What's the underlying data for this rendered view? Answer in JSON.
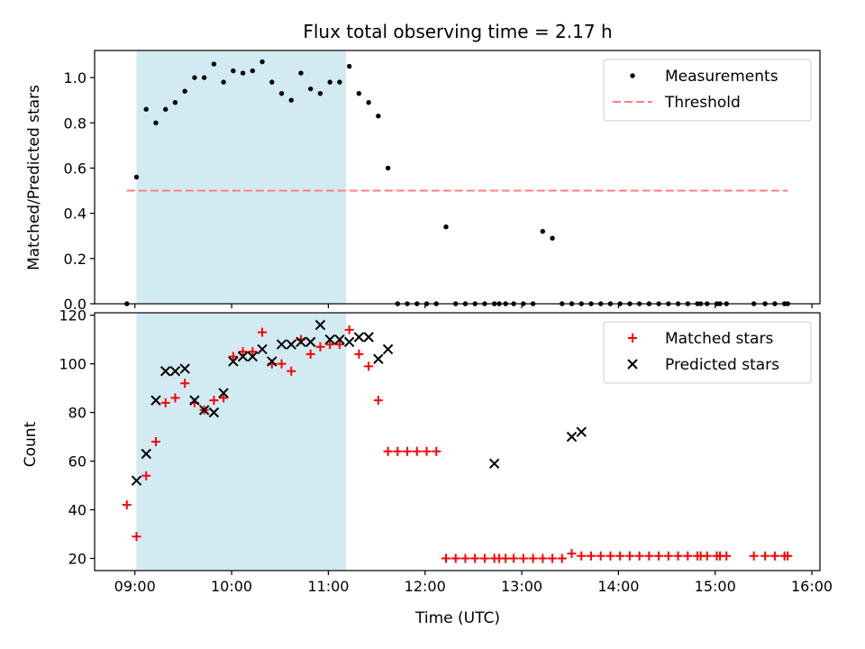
{
  "chart_data": [
    {
      "type": "scatter",
      "title": "Flux total observing time = 2.17 h",
      "xlabel": "",
      "ylabel": "Matched/Predicted stars",
      "xlim": [
        "08:35",
        "16:05"
      ],
      "ylim": [
        0,
        1.12
      ],
      "yticks": [
        "0.0",
        "0.2",
        "0.4",
        "0.6",
        "0.8",
        "1.0"
      ],
      "xticks": [
        "09:00",
        "10:00",
        "11:00",
        "12:00",
        "13:00",
        "14:00",
        "15:00",
        "16:00"
      ],
      "x_tick_labels_visible": false,
      "legend_position": "upper right",
      "highlight_span": [
        "09:01",
        "11:11"
      ],
      "highlight_color": "#add8e6",
      "series": [
        {
          "name": "Measurements",
          "marker": "dot",
          "color": "#000000",
          "x": [
            "08:55",
            "09:01",
            "09:07",
            "09:13",
            "09:19",
            "09:25",
            "09:31",
            "09:37",
            "09:43",
            "09:49",
            "09:55",
            "10:01",
            "10:07",
            "10:13",
            "10:19",
            "10:25",
            "10:31",
            "10:37",
            "10:43",
            "10:49",
            "10:55",
            "11:01",
            "11:07",
            "11:13",
            "11:19",
            "11:25",
            "11:31",
            "11:37",
            "11:43",
            "11:49",
            "11:55",
            "12:01",
            "12:07",
            "12:13",
            "12:19",
            "12:25",
            "12:31",
            "12:37",
            "12:43",
            "12:46",
            "12:50",
            "12:55",
            "13:01",
            "13:07",
            "13:13",
            "13:19",
            "13:25",
            "13:31",
            "13:37",
            "13:43",
            "13:49",
            "13:55",
            "14:01",
            "14:07",
            "14:13",
            "14:19",
            "14:25",
            "14:31",
            "14:37",
            "14:43",
            "14:49",
            "14:51",
            "14:55",
            "15:01",
            "15:03",
            "15:07",
            "15:24",
            "15:31",
            "15:37",
            "15:43",
            "15:45"
          ],
          "y": [
            0.0,
            0.56,
            0.86,
            0.8,
            0.86,
            0.89,
            0.94,
            1.0,
            1.0,
            1.06,
            0.98,
            1.03,
            1.02,
            1.03,
            1.07,
            0.98,
            0.93,
            0.9,
            1.02,
            0.95,
            0.93,
            0.98,
            0.98,
            1.05,
            0.93,
            0.89,
            0.83,
            0.6,
            0.0,
            0.0,
            0.0,
            0.0,
            0.0,
            0.34,
            0.0,
            0.0,
            0.0,
            0.0,
            0.0,
            0.0,
            0.0,
            0.0,
            0.0,
            0.0,
            0.32,
            0.29,
            0.0,
            0.0,
            0.0,
            0.0,
            0.0,
            0.0,
            0.0,
            0.0,
            0.0,
            0.0,
            0.0,
            0.0,
            0.0,
            0.0,
            0.0,
            0.0,
            0.0,
            0.0,
            0.0,
            0.0,
            0.0,
            0.0,
            0.0,
            0.0,
            0.0
          ]
        },
        {
          "name": "Threshold",
          "marker": "dashed-line",
          "color": "#ff7f7f",
          "x": [
            "08:55",
            "15:45"
          ],
          "y": [
            0.5,
            0.5
          ]
        }
      ]
    },
    {
      "type": "scatter",
      "title": "",
      "xlabel": "Time (UTC)",
      "ylabel": "Count",
      "xlim": [
        "08:35",
        "16:05"
      ],
      "ylim": [
        15,
        121
      ],
      "yticks": [
        "20",
        "40",
        "60",
        "80",
        "100",
        "120"
      ],
      "xticks": [
        "09:00",
        "10:00",
        "11:00",
        "12:00",
        "13:00",
        "14:00",
        "15:00",
        "16:00"
      ],
      "legend_position": "upper right",
      "highlight_span": [
        "09:01",
        "11:11"
      ],
      "highlight_color": "#add8e6",
      "series": [
        {
          "name": "Matched stars",
          "marker": "plus",
          "color": "#ff0000",
          "x": [
            "08:55",
            "09:01",
            "09:07",
            "09:13",
            "09:19",
            "09:25",
            "09:31",
            "09:37",
            "09:43",
            "09:49",
            "09:55",
            "10:01",
            "10:07",
            "10:13",
            "10:19",
            "10:25",
            "10:31",
            "10:37",
            "10:43",
            "10:49",
            "10:55",
            "11:01",
            "11:07",
            "11:13",
            "11:19",
            "11:25",
            "11:31",
            "11:37",
            "11:43",
            "11:49",
            "11:55",
            "12:01",
            "12:07",
            "12:13",
            "12:19",
            "12:25",
            "12:31",
            "12:37",
            "12:43",
            "12:46",
            "12:50",
            "12:55",
            "13:01",
            "13:07",
            "13:13",
            "13:19",
            "13:25",
            "13:31",
            "13:37",
            "13:43",
            "13:49",
            "13:55",
            "14:01",
            "14:07",
            "14:13",
            "14:19",
            "14:25",
            "14:31",
            "14:37",
            "14:43",
            "14:49",
            "14:51",
            "14:55",
            "15:01",
            "15:03",
            "15:07",
            "15:24",
            "15:31",
            "15:37",
            "15:43",
            "15:45"
          ],
          "y": [
            42,
            29,
            54,
            68,
            84,
            86,
            92,
            84,
            81,
            85,
            86,
            103,
            105,
            105,
            113,
            100,
            100,
            97,
            110,
            104,
            107,
            108,
            108,
            114,
            104,
            99,
            85,
            64,
            64,
            64,
            64,
            64,
            64,
            20,
            20,
            20,
            20,
            20,
            20,
            20,
            20,
            20,
            20,
            20,
            20,
            20,
            20,
            22,
            21,
            21,
            21,
            21,
            21,
            21,
            21,
            21,
            21,
            21,
            21,
            21,
            21,
            21,
            21,
            21,
            21,
            21,
            21,
            21,
            21,
            21,
            21
          ]
        },
        {
          "name": "Predicted stars",
          "marker": "x",
          "color": "#000000",
          "x": [
            "09:01",
            "09:07",
            "09:13",
            "09:19",
            "09:25",
            "09:31",
            "09:37",
            "09:43",
            "09:49",
            "09:55",
            "10:01",
            "10:07",
            "10:13",
            "10:19",
            "10:25",
            "10:31",
            "10:37",
            "10:43",
            "10:49",
            "10:55",
            "11:01",
            "11:07",
            "11:13",
            "11:19",
            "11:25",
            "11:31",
            "11:37",
            "12:43",
            "13:31",
            "13:37"
          ],
          "y": [
            52,
            63,
            85,
            97,
            97,
            98,
            85,
            81,
            80,
            88,
            101,
            103,
            103,
            106,
            101,
            108,
            108,
            109,
            109,
            116,
            110,
            110,
            109,
            111,
            111,
            102,
            106,
            59,
            70,
            72
          ]
        }
      ]
    }
  ]
}
